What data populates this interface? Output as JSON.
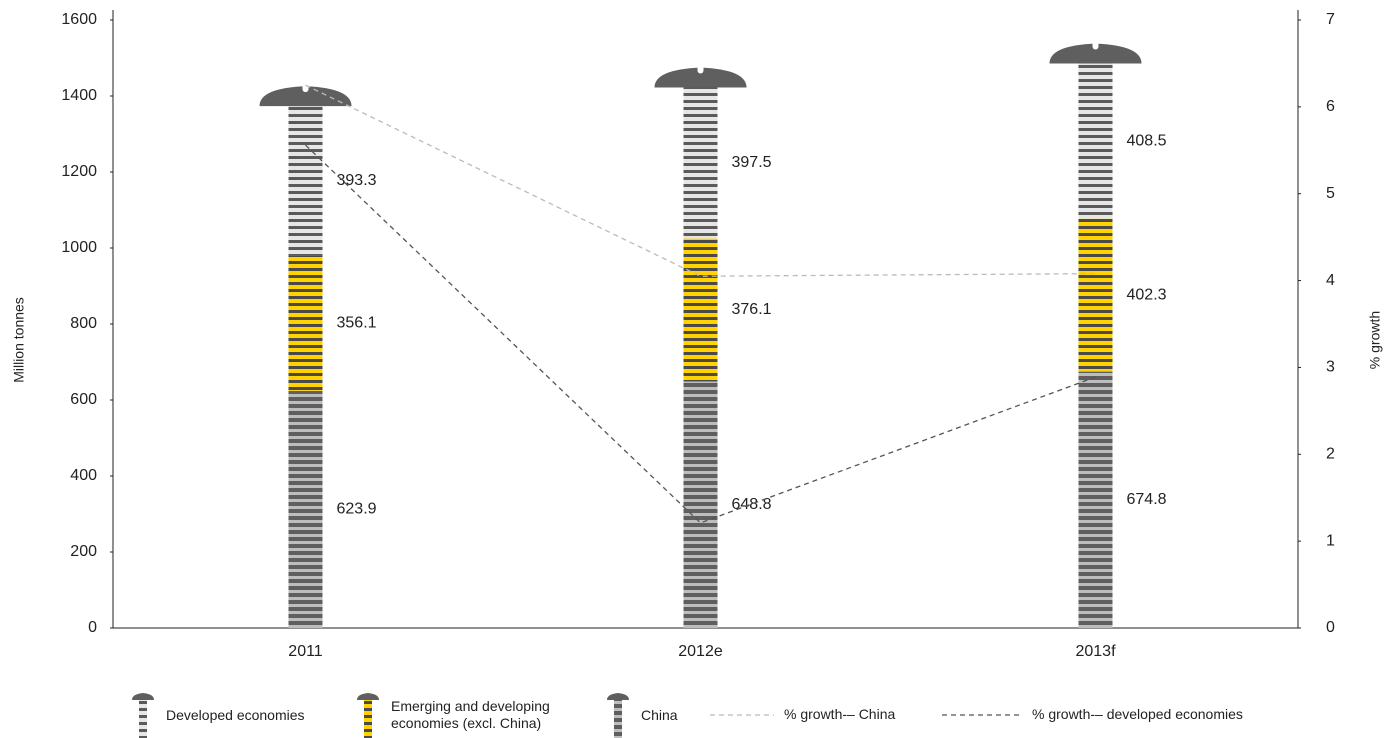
{
  "chart_data": {
    "type": "bar",
    "stacked": true,
    "y_label": "Million tonnes",
    "y2_label": "% growth",
    "categories": [
      "2011",
      "2012e",
      "2013f"
    ],
    "series": [
      {
        "name": "Developed economies",
        "color": "#e6e6e6",
        "stripe": "#5a5a5a",
        "values": [
          393.3,
          397.5,
          408.5
        ]
      },
      {
        "name": "Emerging and developing economies (excl. China)",
        "color": "#ffd200",
        "stripe": "#4a4a4a",
        "values": [
          356.1,
          376.1,
          402.3
        ]
      },
      {
        "name": "China",
        "color": "#5f5f5f",
        "stripe": "#bdbdbd",
        "values": [
          623.9,
          648.8,
          674.8
        ]
      },
      {
        "name": "% growth-– China",
        "type": "line",
        "axis": "y2",
        "color": "#bbbbbb",
        "values": [
          6.25,
          4.05,
          4.08
        ]
      },
      {
        "name": "% growth-– developed economies",
        "type": "line",
        "axis": "y2",
        "color": "#555555",
        "values": [
          5.56,
          1.21,
          2.89
        ]
      }
    ],
    "ylim": [
      0,
      1600
    ],
    "yticks": [
      0,
      200,
      400,
      600,
      800,
      1000,
      1200,
      1400,
      1600
    ],
    "y2lim": [
      0,
      7
    ],
    "y2ticks": [
      0,
      1,
      2,
      3,
      4,
      5,
      6,
      7
    ],
    "grid": false
  }
}
